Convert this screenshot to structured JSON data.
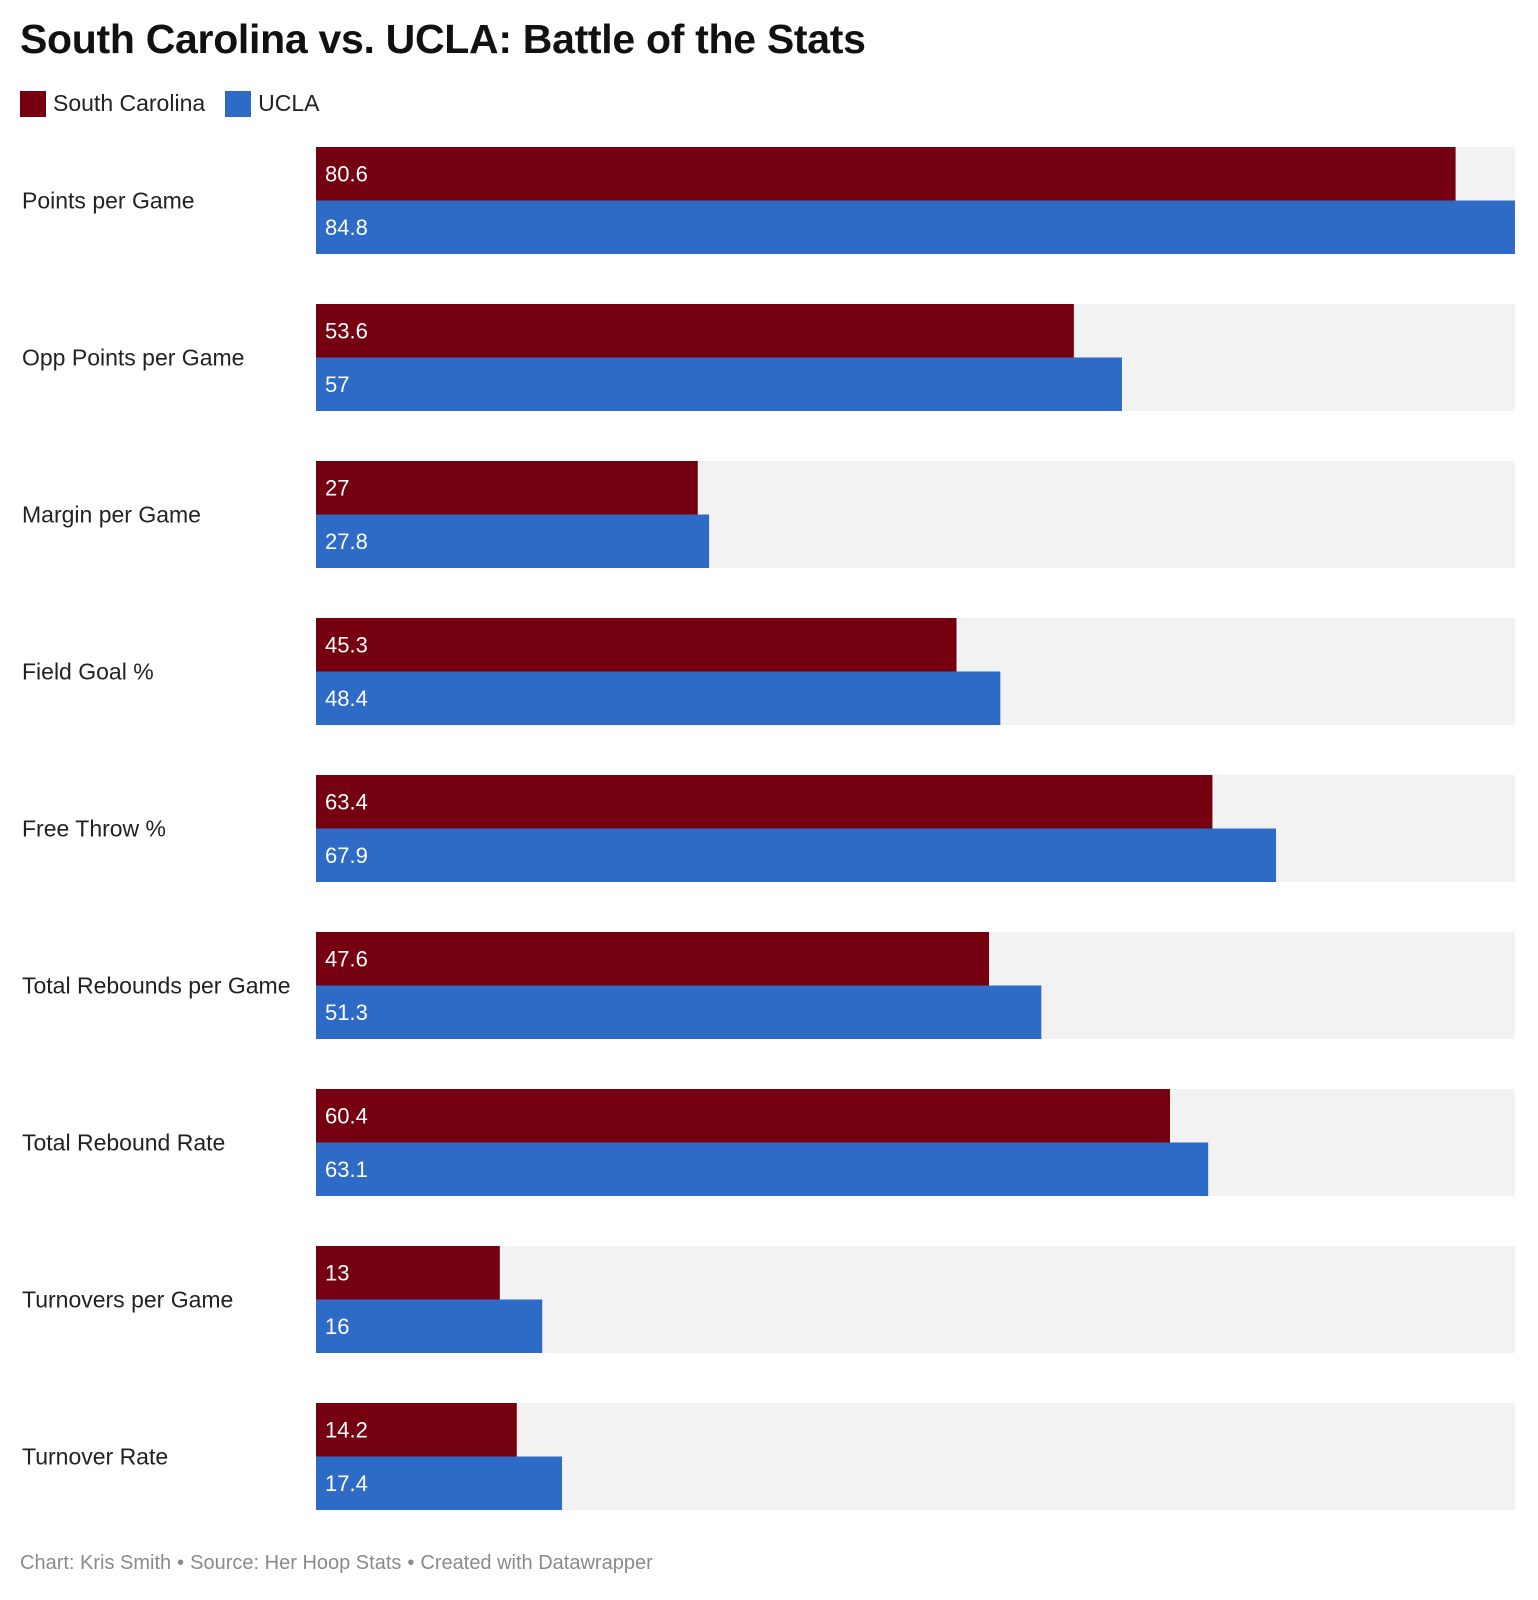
{
  "chart_data": {
    "type": "bar",
    "orientation": "horizontal",
    "title": "South Carolina vs. UCLA: Battle of the Stats",
    "categories": [
      "Points per Game",
      "Opp Points per Game",
      "Margin per Game",
      "Field Goal %",
      "Free Throw %",
      "Total Rebounds per Game",
      "Total Rebound Rate",
      "Turnovers per Game",
      "Turnover Rate"
    ],
    "series": [
      {
        "name": "South Carolina",
        "color": "#75000f",
        "values": [
          80.6,
          53.6,
          27,
          45.3,
          63.4,
          47.6,
          60.4,
          13,
          14.2
        ],
        "labels": [
          "80.6",
          "53.6",
          "27",
          "45.3",
          "63.4",
          "47.6",
          "60.4",
          "13",
          "14.2"
        ]
      },
      {
        "name": "UCLA",
        "color": "#2e6bc6",
        "values": [
          84.8,
          57,
          27.8,
          48.4,
          67.9,
          51.3,
          63.1,
          16,
          17.4
        ],
        "labels": [
          "84.8",
          "57",
          "27.8",
          "48.4",
          "67.9",
          "51.3",
          "63.1",
          "16",
          "17.4"
        ]
      }
    ],
    "xlim": [
      0,
      84.8
    ],
    "background_color": "#f2f2f2",
    "legend_position": "top-left",
    "grid": false
  },
  "footer": {
    "chart_credit": "Chart: Kris Smith",
    "separator": "•",
    "source": "Source: Her Hoop Stats",
    "created_with": "Created with Datawrapper"
  }
}
